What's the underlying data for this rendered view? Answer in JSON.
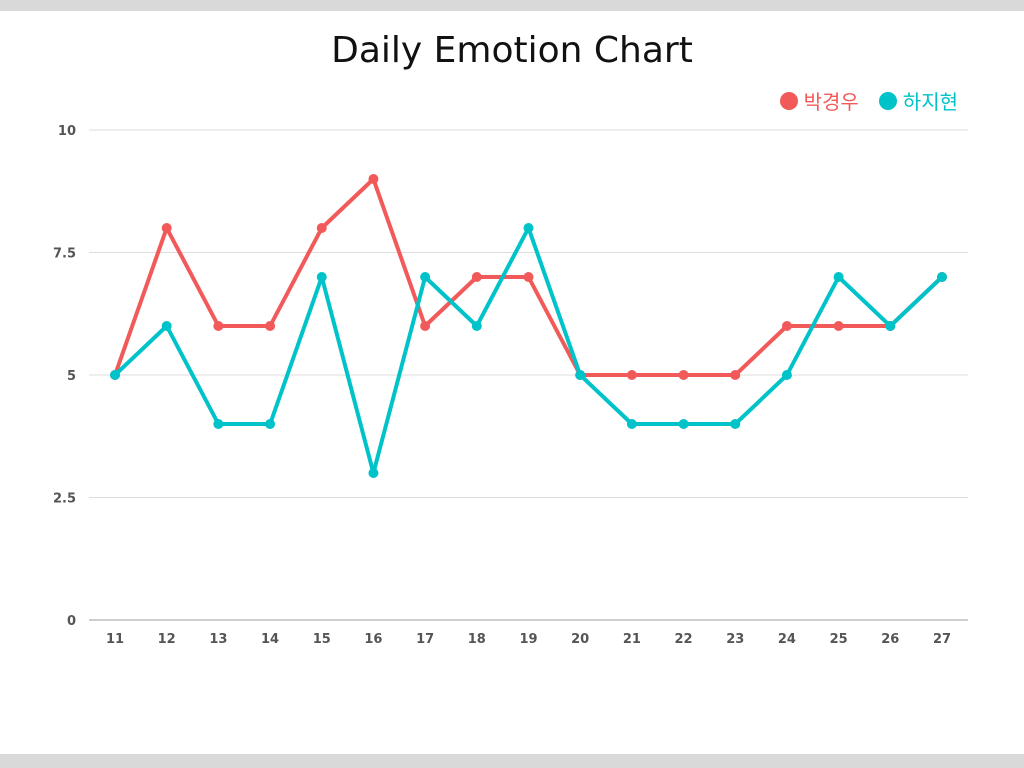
{
  "chart_data": {
    "type": "line",
    "title": "Daily Emotion Chart",
    "xlabel": "",
    "ylabel": "",
    "categories": [
      "11",
      "12",
      "13",
      "14",
      "15",
      "16",
      "17",
      "18",
      "19",
      "20",
      "21",
      "22",
      "23",
      "24",
      "25",
      "26",
      "27"
    ],
    "series": [
      {
        "name": "박경우",
        "color": "#f25a5a",
        "values": [
          5,
          8,
          6,
          6,
          8,
          9,
          6,
          7,
          7,
          5,
          5,
          5,
          5,
          6,
          6,
          6,
          7
        ]
      },
      {
        "name": "하지현",
        "color": "#00c3c9",
        "values": [
          5,
          6,
          4,
          4,
          7,
          3,
          7,
          6,
          8,
          5,
          4,
          4,
          4,
          5,
          7,
          6,
          7
        ]
      }
    ],
    "ylim": [
      0,
      10
    ],
    "yticks": [
      0,
      2.5,
      5,
      7.5,
      10
    ],
    "ytick_labels": [
      "0",
      "2.5",
      "5",
      "7.5",
      "10"
    ],
    "grid": true,
    "legend": "top-right"
  }
}
